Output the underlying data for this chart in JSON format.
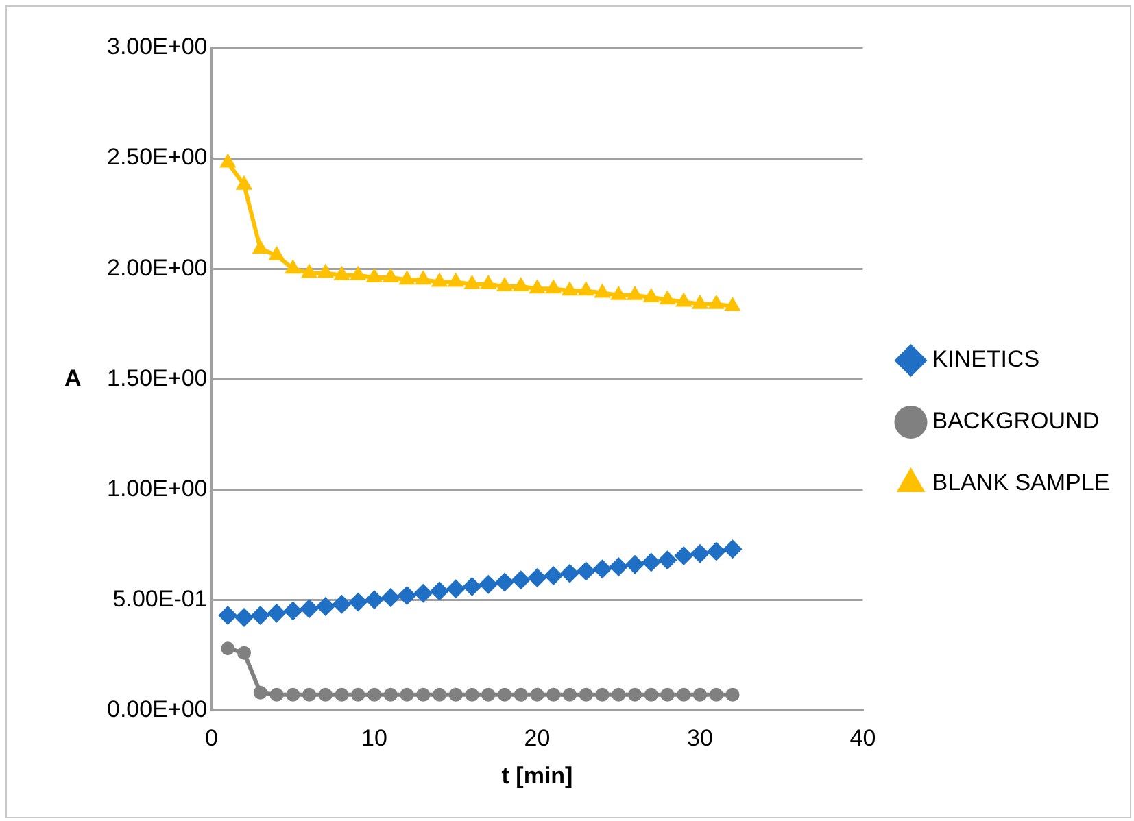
{
  "chart_data": {
    "type": "line",
    "xlabel": "t [min]",
    "ylabel": "A",
    "x": [
      1,
      2,
      3,
      4,
      5,
      6,
      7,
      8,
      9,
      10,
      11,
      12,
      13,
      14,
      15,
      16,
      17,
      18,
      19,
      20,
      21,
      22,
      23,
      24,
      25,
      26,
      27,
      28,
      29,
      30,
      31,
      32
    ],
    "series": [
      {
        "name": "KINETICS",
        "type": "scatter",
        "marker": "diamond",
        "color": "#1f6fc5",
        "values": [
          0.43,
          0.42,
          0.43,
          0.44,
          0.45,
          0.46,
          0.47,
          0.48,
          0.49,
          0.5,
          0.51,
          0.52,
          0.53,
          0.54,
          0.55,
          0.56,
          0.57,
          0.58,
          0.59,
          0.6,
          0.61,
          0.62,
          0.63,
          0.64,
          0.65,
          0.66,
          0.67,
          0.68,
          0.7,
          0.71,
          0.72,
          0.73
        ]
      },
      {
        "name": "BACKGROUND",
        "marker": "circle",
        "color": "#808080",
        "values": [
          0.28,
          0.26,
          0.08,
          0.07,
          0.07,
          0.07,
          0.07,
          0.07,
          0.07,
          0.07,
          0.07,
          0.07,
          0.07,
          0.07,
          0.07,
          0.07,
          0.07,
          0.07,
          0.07,
          0.07,
          0.07,
          0.07,
          0.07,
          0.07,
          0.07,
          0.07,
          0.07,
          0.07,
          0.07,
          0.07,
          0.07,
          0.07
        ]
      },
      {
        "name": "BLANK SAMPLE",
        "marker": "triangle",
        "color": "#ffc000",
        "values": [
          2.48,
          2.38,
          2.09,
          2.06,
          2.0,
          1.98,
          1.98,
          1.97,
          1.97,
          1.96,
          1.96,
          1.95,
          1.95,
          1.94,
          1.94,
          1.93,
          1.93,
          1.92,
          1.92,
          1.91,
          1.91,
          1.9,
          1.9,
          1.89,
          1.88,
          1.88,
          1.87,
          1.86,
          1.85,
          1.84,
          1.84,
          1.83
        ]
      }
    ],
    "xlim": [
      0,
      40
    ],
    "xticks": [
      0,
      10,
      20,
      30,
      40
    ],
    "ylim": [
      0,
      3
    ],
    "yticks": [
      {
        "value": 0,
        "label": "0.00E+00"
      },
      {
        "value": 0.5,
        "label": "5.00E-01"
      },
      {
        "value": 1,
        "label": "1.00E+00"
      },
      {
        "value": 1.5,
        "label": "1.50E+00"
      },
      {
        "value": 2,
        "label": "2.00E+00"
      },
      {
        "value": 2.5,
        "label": "2.50E+00"
      },
      {
        "value": 3,
        "label": "3.00E+00"
      }
    ],
    "grid": "y",
    "legend": "right"
  }
}
